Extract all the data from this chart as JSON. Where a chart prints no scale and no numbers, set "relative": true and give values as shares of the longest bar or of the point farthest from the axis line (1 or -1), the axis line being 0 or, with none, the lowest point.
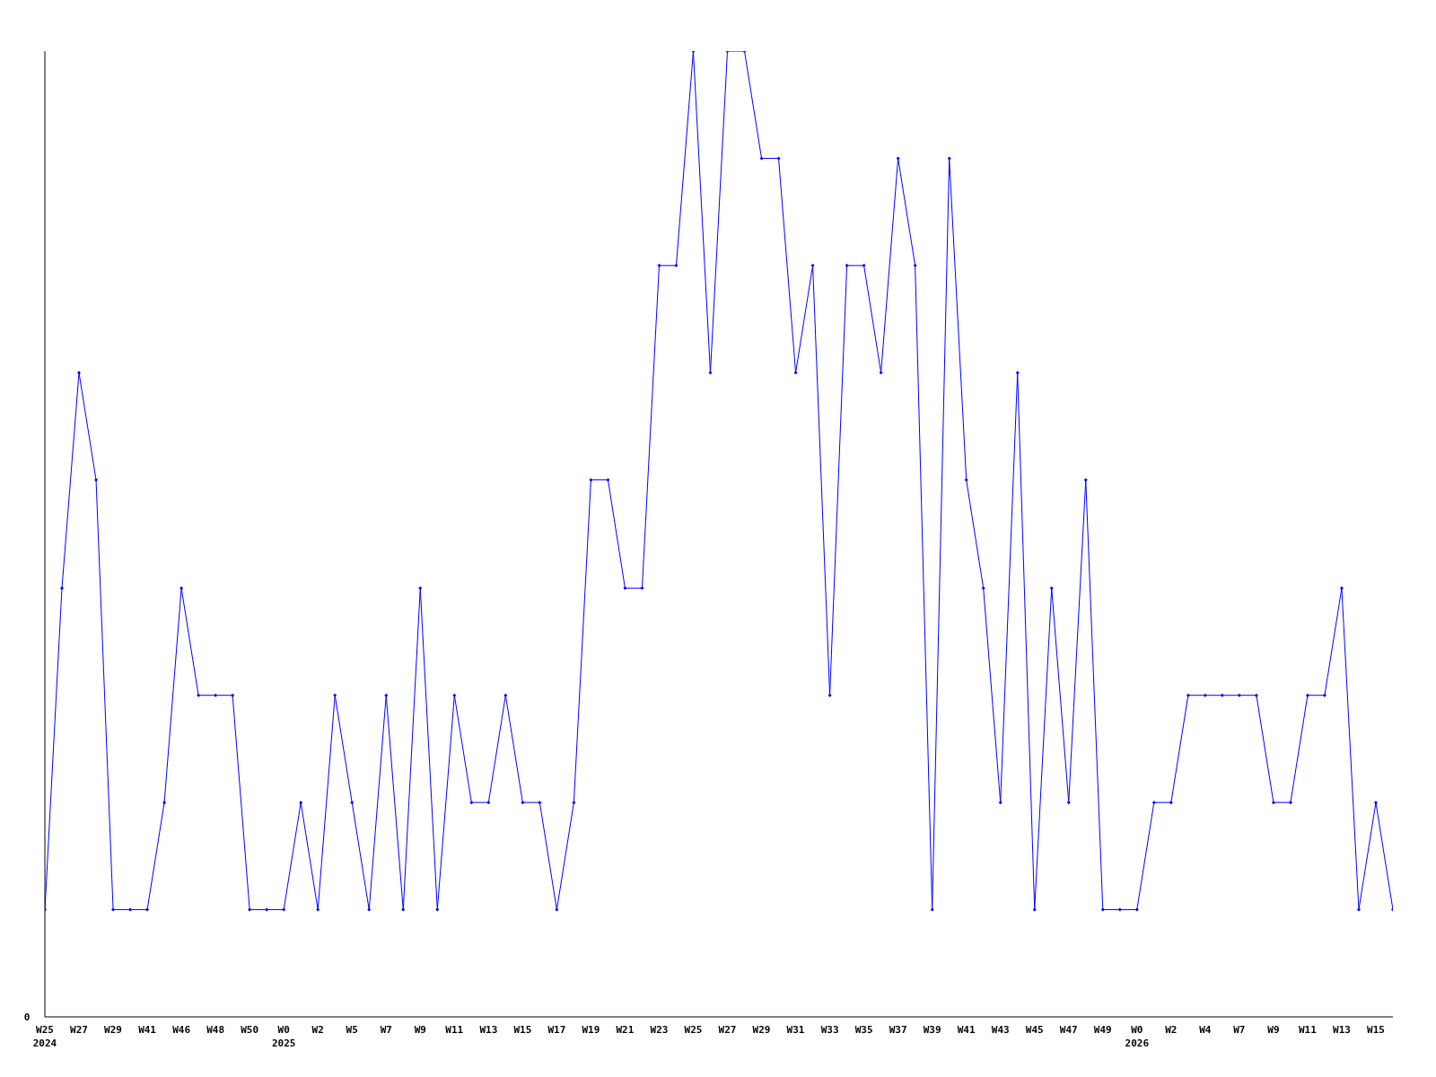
{
  "chart_data": {
    "type": "line",
    "relative": true,
    "annotations": [
      "0"
    ],
    "color": "#0000ff",
    "marker": "diamond",
    "categories": [
      "W25\n2024",
      null,
      "W27",
      null,
      "W29",
      null,
      "W41",
      null,
      "W46",
      null,
      "W48",
      null,
      "W50",
      null,
      "W0\n2025",
      null,
      "W2",
      null,
      "W5",
      null,
      "W7",
      null,
      "W9",
      null,
      "W11",
      null,
      "W13",
      null,
      "W15",
      null,
      "W17",
      null,
      "W19",
      null,
      "W21",
      null,
      "W23",
      null,
      "W25",
      null,
      "W27",
      null,
      "W29",
      null,
      "W31",
      null,
      "W33",
      null,
      "W35",
      null,
      "W37",
      null,
      "W39",
      null,
      "W41",
      null,
      "W43",
      null,
      "W45",
      null,
      "W47",
      null,
      "W49",
      null,
      "W0\n2026",
      null,
      "W2",
      null,
      "W4",
      null,
      "W7",
      null,
      "W9",
      null,
      "W11",
      null,
      "W13",
      null,
      "W15",
      null
    ],
    "values": [
      0.111,
      0.444,
      0.667,
      0.556,
      0.111,
      0.111,
      0.111,
      0.222,
      0.444,
      0.333,
      0.333,
      0.333,
      0.111,
      0.111,
      0.111,
      0.222,
      0.111,
      0.333,
      0.222,
      0.111,
      0.333,
      0.111,
      0.444,
      0.111,
      0.333,
      0.222,
      0.222,
      0.333,
      0.222,
      0.222,
      0.111,
      0.222,
      0.556,
      0.556,
      0.444,
      0.444,
      0.778,
      0.778,
      1,
      0.667,
      1,
      1,
      0.889,
      0.889,
      0.667,
      0.778,
      0.333,
      0.778,
      0.778,
      0.667,
      0.889,
      0.778,
      0.111,
      0.889,
      0.556,
      0.444,
      0.222,
      0.667,
      0.111,
      0.444,
      0.222,
      0.556,
      0.111,
      0.111,
      0.111,
      0.222,
      0.222,
      0.333,
      0.333,
      0.333,
      0.333,
      0.333,
      0.222,
      0.222,
      0.333,
      0.333,
      0.444,
      0.111,
      0.222,
      0.111
    ]
  }
}
